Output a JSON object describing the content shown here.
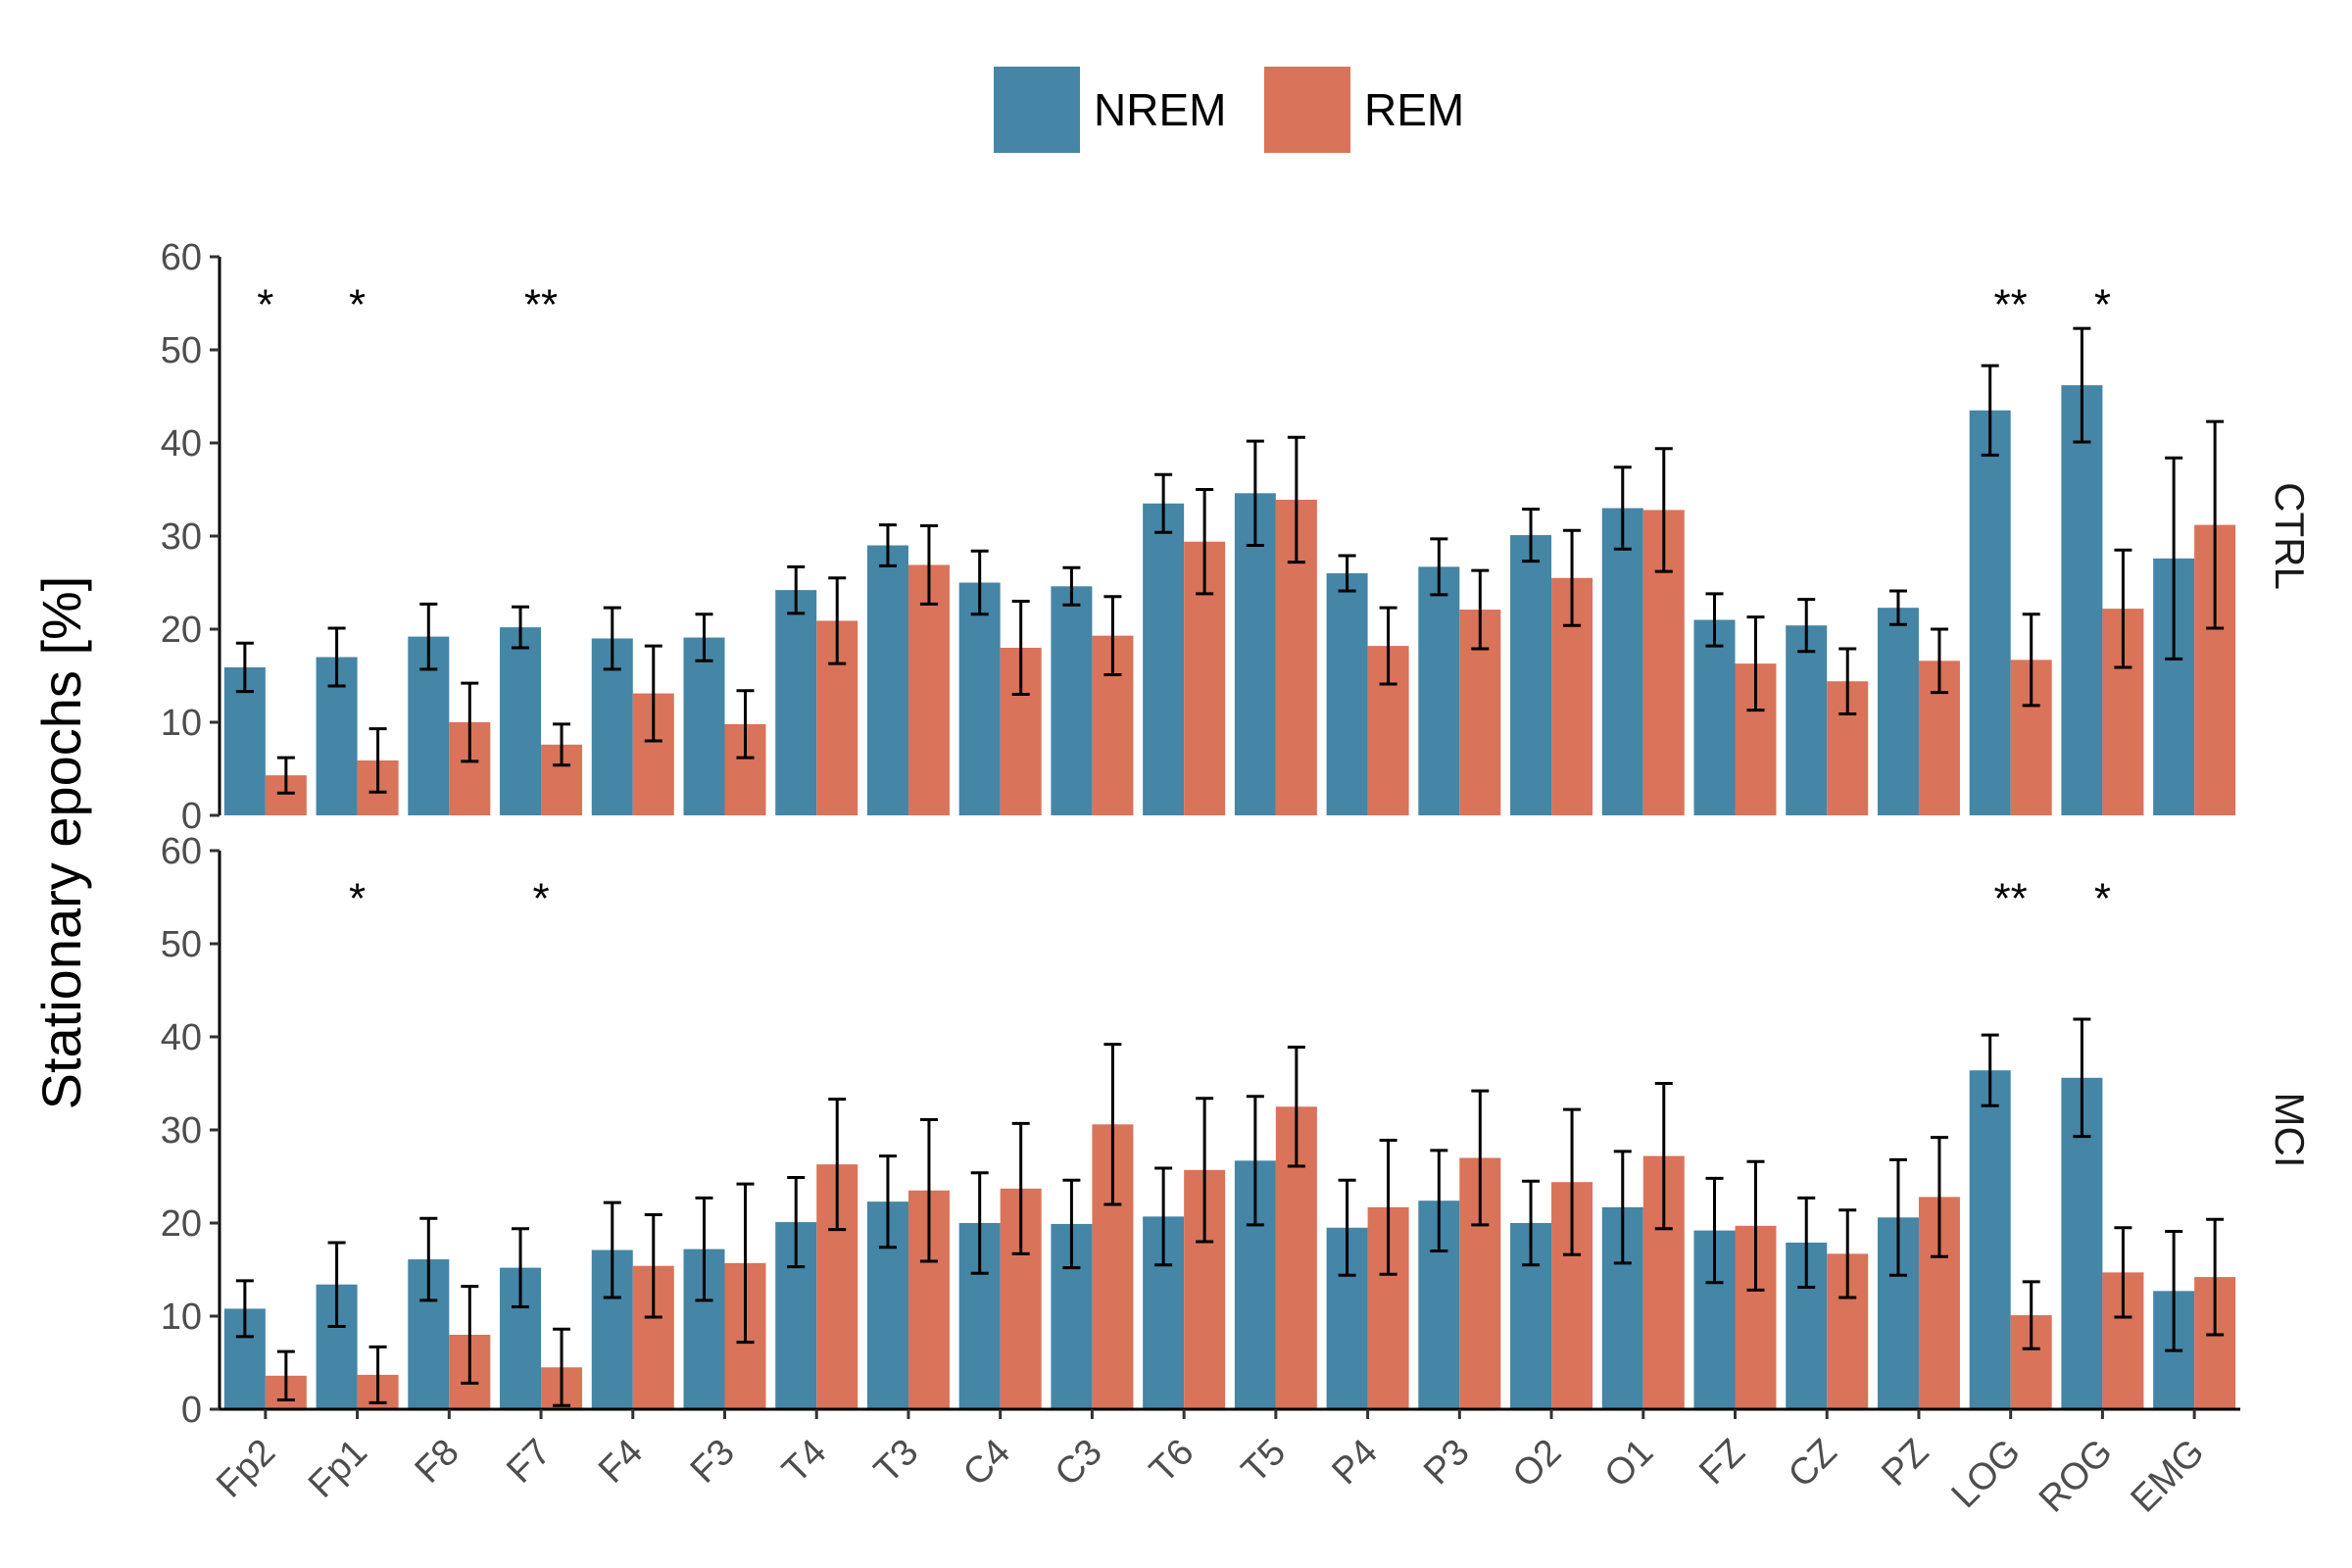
{
  "chart_data": {
    "type": "bar",
    "ylabel": "Stationary epochs [%]",
    "ylim": [
      0,
      60
    ],
    "yticks": [
      0,
      10,
      20,
      30,
      40,
      50,
      60
    ],
    "legend_position": "top",
    "colors": {
      "NREM": "#4585a6",
      "REM": "#d9735a"
    },
    "categories": [
      "Fp2",
      "Fp1",
      "F8",
      "F7",
      "F4",
      "F3",
      "T4",
      "T3",
      "C4",
      "C3",
      "T6",
      "T5",
      "P4",
      "P3",
      "O2",
      "O1",
      "FZ",
      "CZ",
      "PZ",
      "LOG",
      "ROG",
      "EMG"
    ],
    "legend": [
      {
        "name": "NREM",
        "color": "#4585a6"
      },
      {
        "name": "REM",
        "color": "#d9735a"
      }
    ],
    "panels": [
      {
        "name": "CTRL",
        "series": [
          {
            "name": "NREM",
            "values": [
              15.9,
              17.0,
              19.2,
              20.2,
              19.0,
              19.1,
              24.2,
              29.0,
              25.0,
              24.6,
              33.5,
              34.6,
              26.0,
              26.7,
              30.1,
              33.0,
              21.0,
              20.4,
              22.3,
              43.5,
              46.2,
              27.6
            ],
            "err": [
              2.6,
              3.1,
              3.5,
              2.2,
              3.3,
              2.5,
              2.5,
              2.2,
              3.4,
              2.0,
              3.1,
              5.6,
              1.9,
              3.0,
              2.8,
              4.4,
              2.8,
              2.8,
              1.8,
              4.8,
              6.1,
              10.8
            ]
          },
          {
            "name": "REM",
            "values": [
              4.3,
              5.9,
              10.0,
              7.6,
              13.1,
              9.8,
              20.9,
              26.9,
              18.0,
              19.3,
              29.4,
              33.9,
              18.2,
              22.1,
              25.5,
              32.8,
              16.3,
              14.4,
              16.6,
              16.7,
              22.2,
              31.2
            ],
            "err": [
              1.9,
              3.4,
              4.2,
              2.2,
              5.1,
              3.6,
              4.6,
              4.2,
              5.0,
              4.2,
              5.6,
              6.7,
              4.1,
              4.2,
              5.1,
              6.6,
              5.0,
              3.5,
              3.4,
              4.9,
              6.3,
              11.1
            ]
          }
        ],
        "significance": [
          "*",
          "*",
          "",
          "**",
          "",
          "",
          "",
          "",
          "",
          "",
          "",
          "",
          "",
          "",
          "",
          "",
          "",
          "",
          "",
          "**",
          "*",
          ""
        ]
      },
      {
        "name": "MCI",
        "series": [
          {
            "name": "NREM",
            "values": [
              10.8,
              13.4,
              16.1,
              15.2,
              17.1,
              17.2,
              20.1,
              22.3,
              20.0,
              19.9,
              20.7,
              26.7,
              19.5,
              22.4,
              20.0,
              21.7,
              19.2,
              17.9,
              20.6,
              36.4,
              35.6,
              12.7
            ],
            "err": [
              3.0,
              4.5,
              4.4,
              4.2,
              5.1,
              5.5,
              4.8,
              4.9,
              5.4,
              4.7,
              5.2,
              6.9,
              5.1,
              5.4,
              4.5,
              6.0,
              5.6,
              4.8,
              6.2,
              3.8,
              6.3,
              6.4
            ]
          },
          {
            "name": "REM",
            "values": [
              3.6,
              3.7,
              8.0,
              4.5,
              15.4,
              15.7,
              26.3,
              23.5,
              23.7,
              30.6,
              25.7,
              32.5,
              21.7,
              27.0,
              24.4,
              27.2,
              19.7,
              16.7,
              22.8,
              10.1,
              14.7,
              14.2
            ],
            "err": [
              2.6,
              3.0,
              5.2,
              4.1,
              5.5,
              8.5,
              7.0,
              7.6,
              7.0,
              8.6,
              7.7,
              6.4,
              7.2,
              7.2,
              7.8,
              7.8,
              6.9,
              4.7,
              6.4,
              3.6,
              4.8,
              6.2
            ]
          }
        ],
        "significance": [
          "",
          "*",
          "",
          "*",
          "",
          "",
          "",
          "",
          "",
          "",
          "",
          "",
          "",
          "",
          "",
          "",
          "",
          "",
          "",
          "**",
          "*",
          ""
        ]
      }
    ]
  }
}
